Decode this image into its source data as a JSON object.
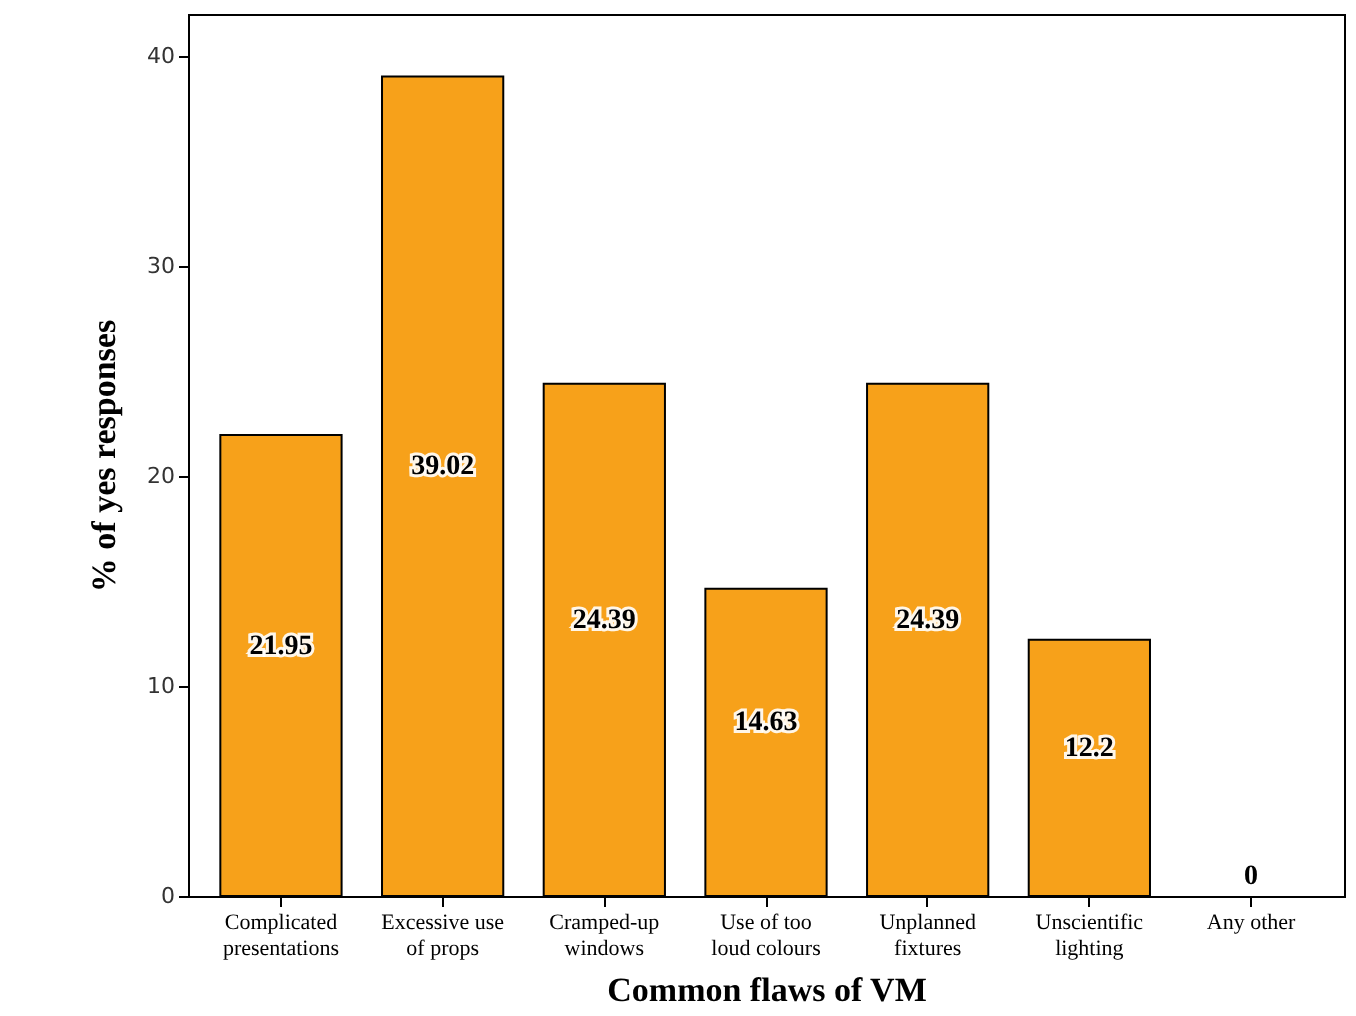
{
  "chart_data": {
    "type": "bar",
    "xlabel": "Common flaws of VM",
    "ylabel": "% of yes responses",
    "categories": [
      "Complicated presentations",
      "Excessive use of props",
      "Cramped-up windows",
      "Use of too loud colours",
      "Unplanned fixtures",
      "Unscientific lighting",
      "Any other"
    ],
    "values": [
      21.95,
      39.02,
      24.39,
      14.63,
      24.39,
      12.2,
      0
    ],
    "color": "#f7a11a",
    "ylim": [
      0,
      42
    ],
    "yticks": [
      0,
      10,
      20,
      30,
      40
    ],
    "grid": false,
    "data_labels": true
  }
}
